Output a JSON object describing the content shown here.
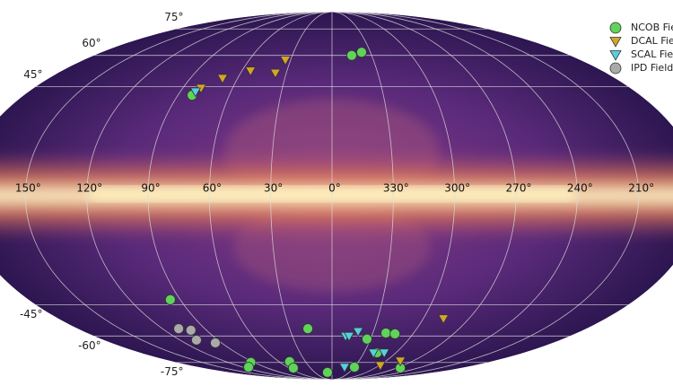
{
  "chart_data": {
    "type": "scatter",
    "projection": "mollweide",
    "xticks": [
      {
        "value": 150,
        "label": "150°"
      },
      {
        "value": 120,
        "label": "120°"
      },
      {
        "value": 90,
        "label": "90°"
      },
      {
        "value": 60,
        "label": "60°"
      },
      {
        "value": 30,
        "label": "30°"
      },
      {
        "value": 0,
        "label": "0°"
      },
      {
        "value": 330,
        "label": "330°"
      },
      {
        "value": 300,
        "label": "300°"
      },
      {
        "value": 270,
        "label": "270°"
      },
      {
        "value": 240,
        "label": "240°"
      },
      {
        "value": 210,
        "label": "210°"
      }
    ],
    "yticks": [
      {
        "value": 75,
        "label": "75°"
      },
      {
        "value": 60,
        "label": "60°"
      },
      {
        "value": 45,
        "label": "45°"
      },
      {
        "value": -45,
        "label": "-45°"
      },
      {
        "value": -60,
        "label": "-60°"
      },
      {
        "value": -75,
        "label": "-75°"
      }
    ],
    "grid": true,
    "legend": "upper right",
    "series": [
      {
        "name": "NCOB Fields",
        "color": "#5fd35a",
        "marker": "circle",
        "x": [
          345.1,
          336.9,
          81.7,
          95.9,
          17.1,
          332.7,
          320.4,
          313.4,
          317.8,
          93.9,
          112.5,
          48.0,
          53.9,
          7.9,
          329.8,
          264.7
        ],
        "y": [
          60.0,
          61.6,
          41.2,
          -42.8,
          -56.3,
          -61.6,
          -58.5,
          -58.9,
          -69.1,
          -75.0,
          -78.2,
          -74.5,
          -78.8,
          -82.1,
          -78.2,
          -78.8
        ]
      },
      {
        "name": "DCAL Fields",
        "color": "#d4a52a",
        "marker": "triangle",
        "x": [
          33.8,
          37.2,
          54.3,
          69.6,
          79.0,
          286.8,
          299.1,
          284.2
        ],
        "y": [
          57.7,
          51.4,
          52.4,
          48.9,
          44.4,
          -51.4,
          -76.9,
          -74.0
        ]
      },
      {
        "name": "SCAL Fields",
        "color": "#57cfe0",
        "marker": "triangle",
        "x": [
          81.0,
          349.8,
          347.1,
          341.1,
          321.1,
          311.0,
          343.1
        ],
        "y": [
          42.8,
          -60.0,
          -60.0,
          -57.7,
          -69.1,
          -69.1,
          -78.2
        ]
      },
      {
        "name": "IPD Fields",
        "color": "#aaaaaa",
        "marker": "circle",
        "x": [
          108.5,
          101.2,
          106.9,
          95.1
        ],
        "y": [
          -56.3,
          -57.1,
          -62.1,
          -63.6
        ]
      }
    ]
  }
}
